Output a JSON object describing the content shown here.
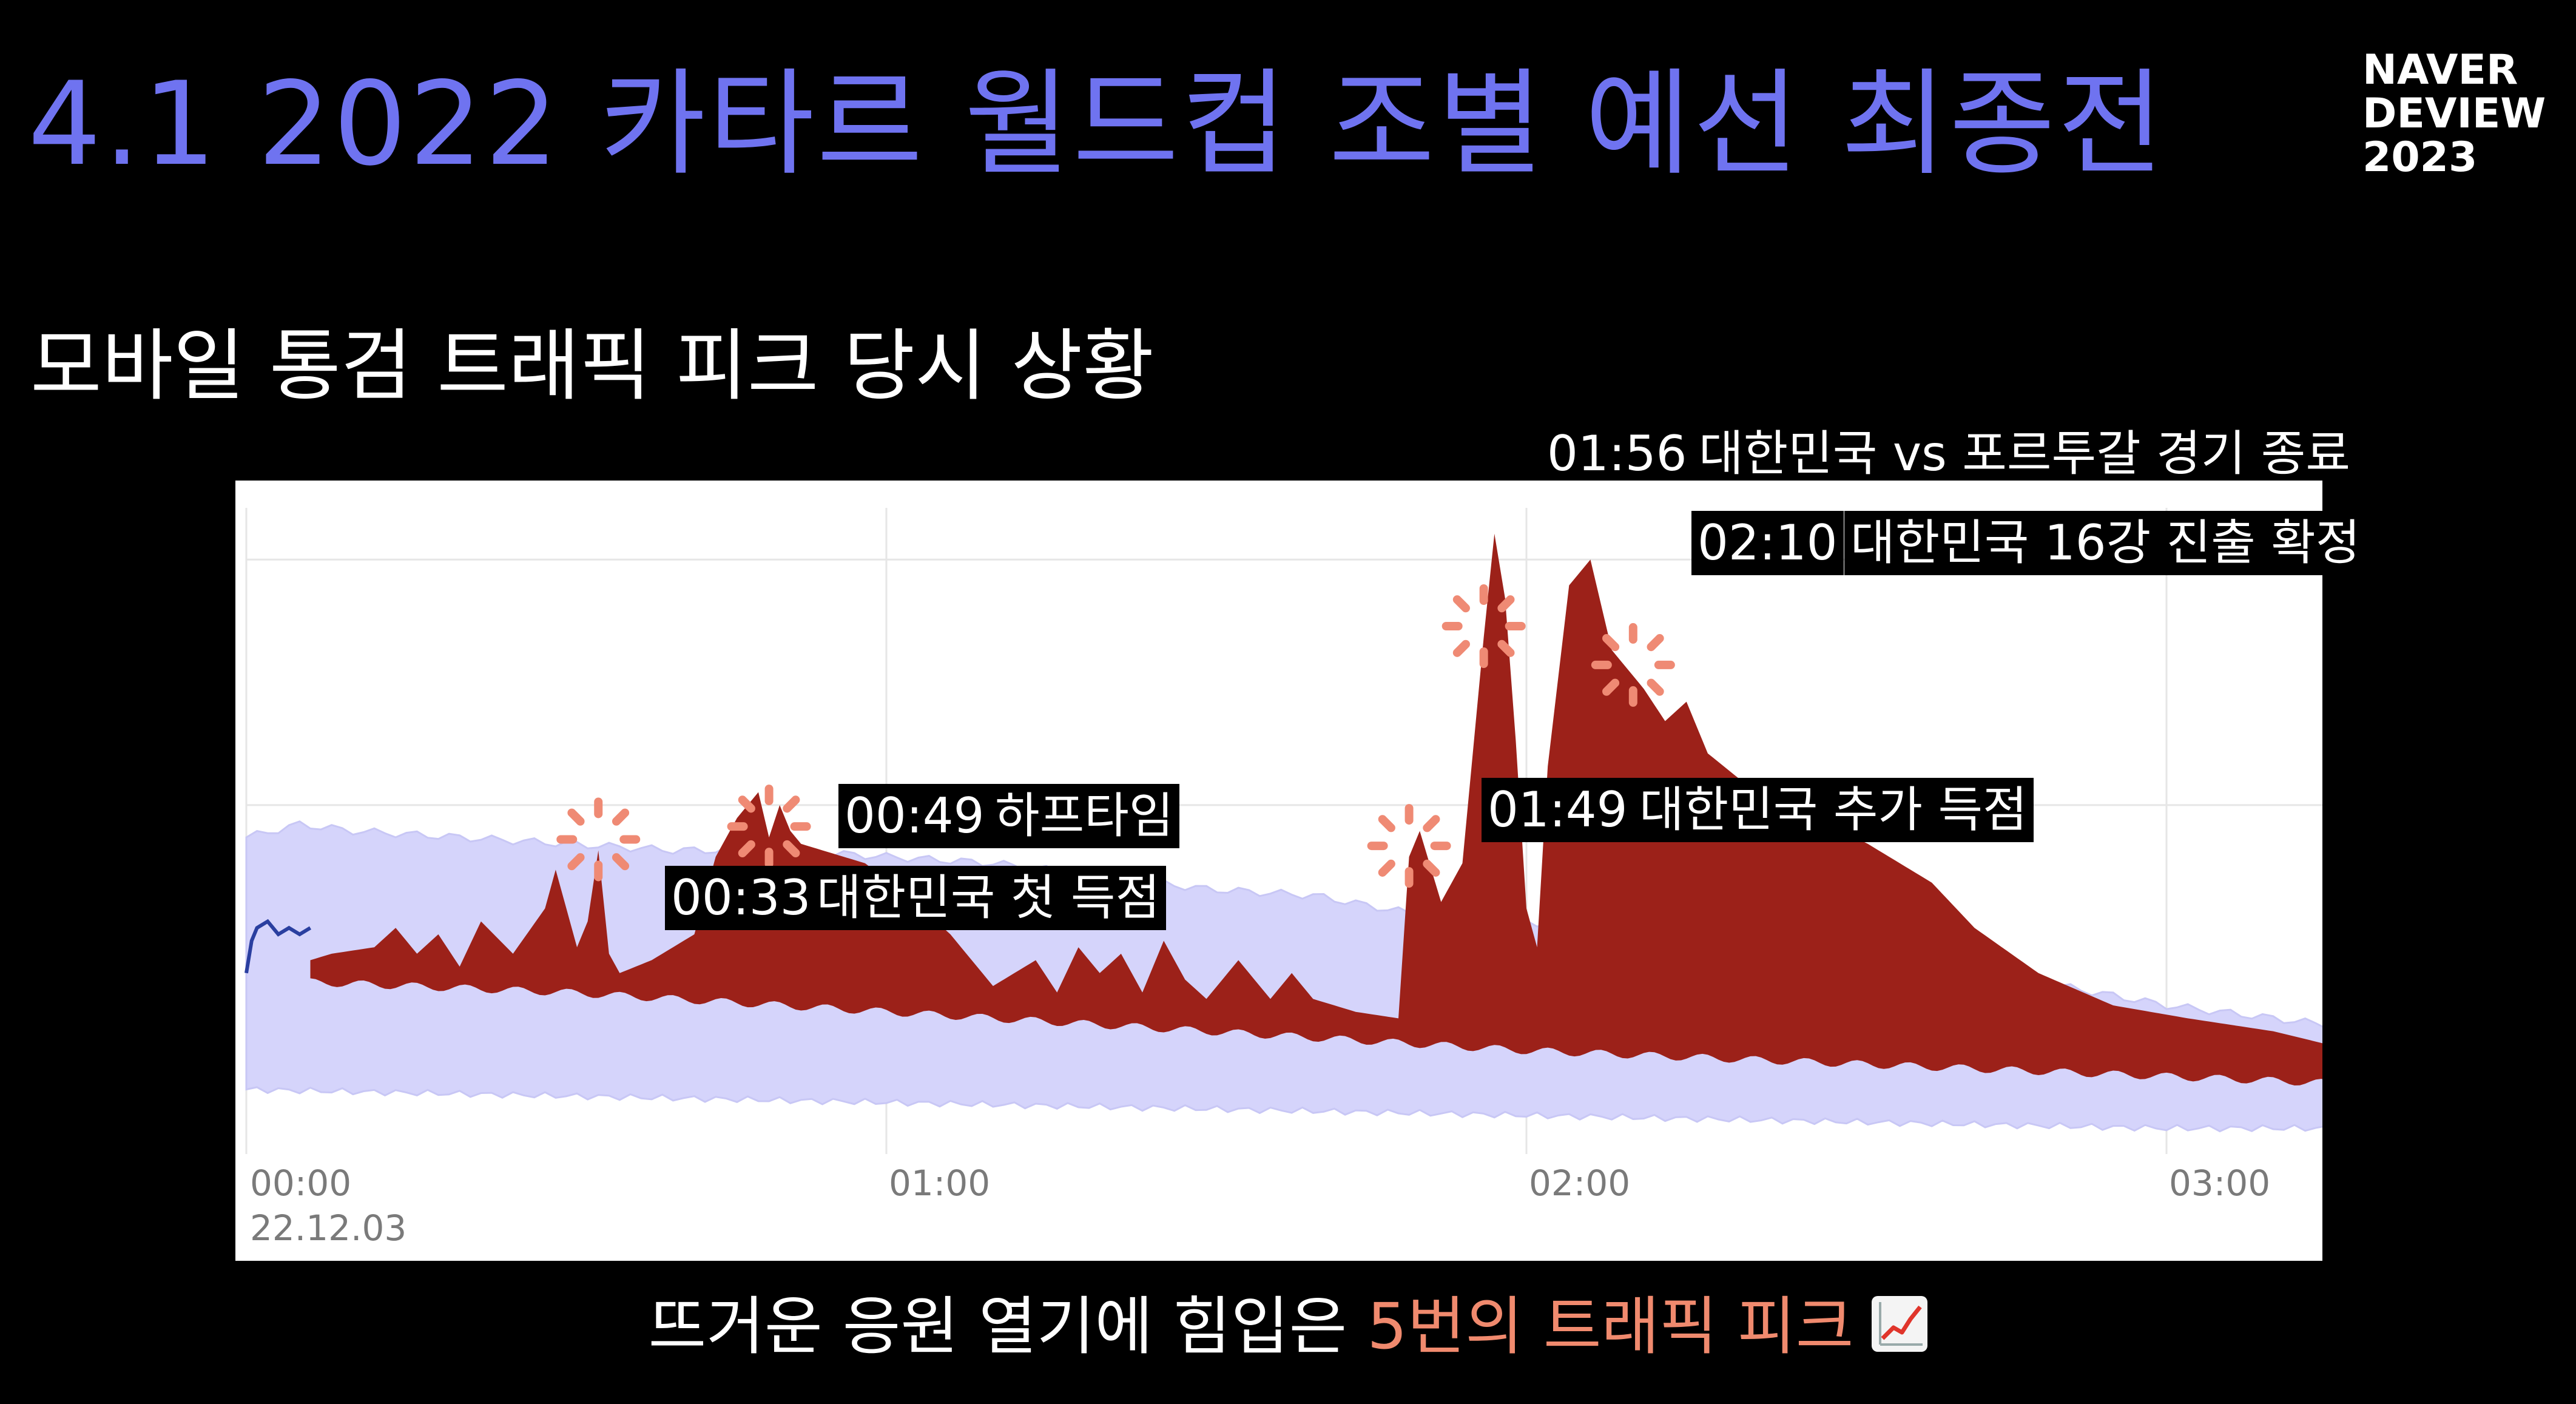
{
  "header": {
    "title": "4.1 2022 카타르 월드컵 조별 예선 최종전",
    "title_color": "#6f73f0",
    "brand_lines": [
      "NAVER",
      "DEVIEW",
      "2023"
    ]
  },
  "subtitle": "모바일 통검 트래픽 피크 당시 상황",
  "annotations": [
    {
      "time": "00:33",
      "label": "대한민국 첫 득점"
    },
    {
      "time": "00:49",
      "label": "하프타임"
    },
    {
      "time": "01:49",
      "label": "대한민국 추가 득점"
    },
    {
      "time": "01:56",
      "label": "대한민국 vs 포르투갈 경기 종료"
    },
    {
      "time": "02:10",
      "label": "대한민국 16강 진출 확정"
    }
  ],
  "caption": {
    "prefix": "뜨거운 응원 열기에 힘입은 ",
    "highlight": "5번의 트래픽 피크",
    "highlight_color": "#f08a6e",
    "icon": "chart-increasing-icon"
  },
  "chart_data": {
    "type": "area",
    "x_ticks": [
      "00:00",
      "01:00",
      "02:00",
      "03:00"
    ],
    "x_date_label": "22.12.03",
    "x_range_minutes": [
      0,
      195
    ],
    "y_range": [
      0,
      100
    ],
    "grid": true,
    "colors": {
      "band": "#d5d4fb",
      "band_edge": "#c8c7f5",
      "traffic": "#9c2119",
      "early_line": "#2a3fa0",
      "marker": "#ef8a74"
    },
    "series": [
      {
        "name": "",
        "role": "expected_band_upper",
        "x": [
          0,
          5,
          10,
          20,
          30,
          40,
          50,
          60,
          70,
          80,
          90,
          100,
          110,
          120,
          130,
          140,
          150,
          160,
          170,
          180,
          195
        ],
        "y": [
          49,
          51,
          50,
          49,
          48,
          47,
          47,
          46,
          45,
          43,
          41,
          40,
          37,
          36,
          34,
          32,
          30,
          28,
          26,
          23,
          20
        ]
      },
      {
        "name": "",
        "role": "expected_band_lower",
        "x": [
          0,
          30,
          60,
          90,
          120,
          150,
          180,
          195
        ],
        "y": [
          10,
          9,
          8,
          7,
          6,
          5,
          4,
          4
        ]
      },
      {
        "name": "",
        "role": "baseline",
        "x": [
          0,
          30,
          60,
          90,
          120,
          150,
          180,
          195
        ],
        "y": [
          27,
          25,
          22,
          19,
          16,
          14,
          12,
          11
        ]
      },
      {
        "name": "",
        "role": "traffic",
        "x": [
          6,
          8,
          12,
          14,
          16,
          18,
          20,
          22,
          25,
          28,
          29,
          31,
          32,
          33,
          34,
          35,
          38,
          42,
          44,
          46,
          48,
          49,
          50,
          51,
          52,
          54,
          58,
          62,
          66,
          70,
          74,
          76,
          78,
          80,
          82,
          84,
          86,
          88,
          90,
          93,
          96,
          98,
          100,
          104,
          108,
          109,
          110,
          112,
          114,
          116,
          117,
          118,
          119,
          120,
          121,
          122,
          124,
          126,
          128,
          131,
          133,
          135,
          137,
          140,
          146,
          152,
          158,
          162,
          168,
          175,
          182,
          190,
          195
        ],
        "y": [
          30,
          31,
          32,
          35,
          31,
          34,
          29,
          36,
          31,
          38,
          44,
          32,
          36,
          47,
          31,
          28,
          30,
          34,
          46,
          52,
          56,
          49,
          54,
          50,
          48,
          47,
          45,
          40,
          34,
          26,
          30,
          25,
          32,
          28,
          31,
          25,
          33,
          27,
          24,
          30,
          24,
          28,
          24,
          22,
          21,
          46,
          50,
          39,
          45,
          80,
          96,
          86,
          64,
          38,
          32,
          60,
          88,
          92,
          78,
          72,
          67,
          70,
          62,
          58,
          53,
          48,
          42,
          35,
          28,
          23,
          21,
          19,
          17
        ]
      },
      {
        "name": "",
        "role": "early_traffic",
        "x": [
          0,
          0.5,
          1,
          2,
          3,
          4,
          5,
          6
        ],
        "y": [
          28,
          33,
          35,
          36,
          34,
          35,
          34,
          35
        ]
      }
    ],
    "markers_minutes": [
      33,
      49,
      109,
      116,
      130
    ]
  }
}
